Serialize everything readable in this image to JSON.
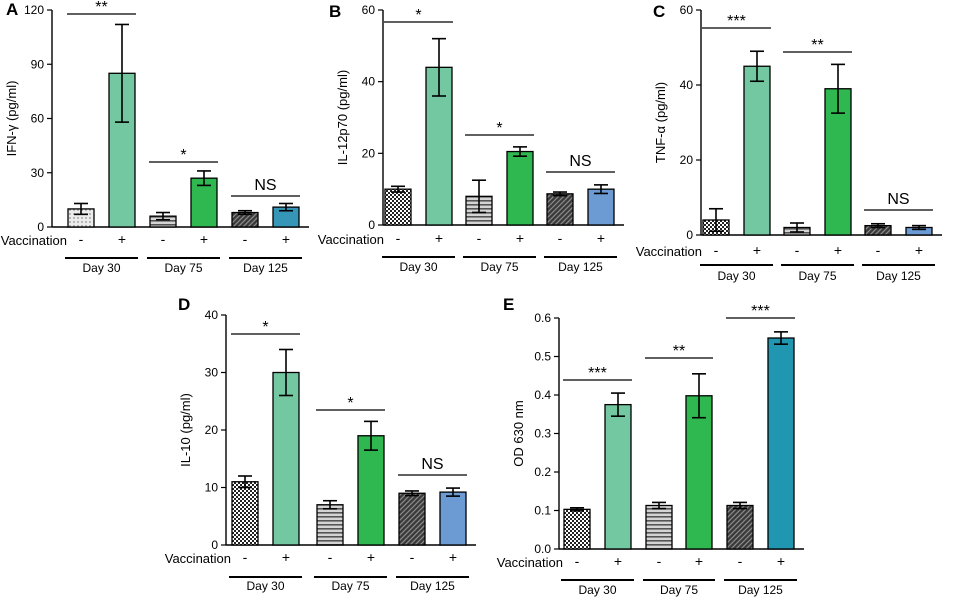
{
  "chart_data": [
    {
      "type": "bar",
      "panel": "A",
      "ylabel": "IFN-γ (pg/ml)",
      "ylim": [
        0,
        120
      ],
      "yticks": [
        "0",
        "30",
        "60",
        "90",
        "120"
      ],
      "treatment_label": "Vaccination",
      "signs": [
        "-",
        "+"
      ],
      "groups": [
        {
          "label": "Day 30",
          "sig": "**",
          "values": [
            10,
            85
          ],
          "errors": [
            3,
            27
          ]
        },
        {
          "label": "Day 75",
          "sig": "*",
          "values": [
            6,
            27
          ],
          "errors": [
            2,
            4
          ]
        },
        {
          "label": "Day 125",
          "sig": "NS",
          "values": [
            8,
            11
          ],
          "errors": [
            1,
            2
          ]
        }
      ]
    },
    {
      "type": "bar",
      "panel": "B",
      "ylabel": "IL-12p70 (pg/ml)",
      "ylim": [
        0,
        60
      ],
      "yticks": [
        "0",
        "20",
        "40",
        "60"
      ],
      "treatment_label": "Vaccination",
      "signs": [
        "-",
        "+"
      ],
      "groups": [
        {
          "label": "Day 30",
          "sig": "*",
          "values": [
            10,
            44
          ],
          "errors": [
            0.8,
            8
          ]
        },
        {
          "label": "Day 75",
          "sig": "*",
          "values": [
            8,
            20.5
          ],
          "errors": [
            4.5,
            1.3
          ]
        },
        {
          "label": "Day 125",
          "sig": "NS",
          "values": [
            8.7,
            10
          ],
          "errors": [
            0.5,
            1.2
          ]
        }
      ]
    },
    {
      "type": "bar",
      "panel": "C",
      "ylabel": "TNF-α (pg/ml)",
      "ylim": [
        0,
        60
      ],
      "yticks": [
        "0",
        "20",
        "40",
        "60"
      ],
      "treatment_label": "Vaccination",
      "signs": [
        "-",
        "+"
      ],
      "groups": [
        {
          "label": "Day 30",
          "sig": "***",
          "values": [
            4,
            45
          ],
          "errors": [
            3,
            4
          ]
        },
        {
          "label": "Day 75",
          "sig": "**",
          "values": [
            2,
            39
          ],
          "errors": [
            1.2,
            6.5
          ]
        },
        {
          "label": "Day 125",
          "sig": "NS",
          "values": [
            2.5,
            2
          ],
          "errors": [
            0.5,
            0.5
          ]
        }
      ]
    },
    {
      "type": "bar",
      "panel": "D",
      "ylabel": "IL-10 (pg/ml)",
      "ylim": [
        0,
        40
      ],
      "yticks": [
        "0",
        "10",
        "20",
        "30",
        "40"
      ],
      "treatment_label": "Vaccination",
      "signs": [
        "-",
        "+"
      ],
      "groups": [
        {
          "label": "Day 30",
          "sig": "*",
          "values": [
            11,
            30
          ],
          "errors": [
            1,
            4
          ]
        },
        {
          "label": "Day 75",
          "sig": "*",
          "values": [
            7,
            19
          ],
          "errors": [
            0.7,
            2.5
          ]
        },
        {
          "label": "Day 125",
          "sig": "NS",
          "values": [
            9,
            9.2
          ],
          "errors": [
            0.4,
            0.7
          ]
        }
      ]
    },
    {
      "type": "bar",
      "panel": "E",
      "ylabel": "OD 630 nm",
      "ylim": [
        0,
        0.6
      ],
      "yticks": [
        "0.0",
        "0.1",
        "0.2",
        "0.3",
        "0.4",
        "0.5",
        "0.6"
      ],
      "treatment_label": "Vaccination",
      "signs": [
        "-",
        "+"
      ],
      "groups": [
        {
          "label": "Day 30",
          "sig": "***",
          "values": [
            0.103,
            0.375
          ],
          "errors": [
            0.004,
            0.03
          ]
        },
        {
          "label": "Day 75",
          "sig": "**",
          "values": [
            0.113,
            0.398
          ],
          "errors": [
            0.008,
            0.057
          ]
        },
        {
          "label": "Day 125",
          "sig": "***",
          "values": [
            0.113,
            0.548
          ],
          "errors": [
            0.008,
            0.016
          ]
        }
      ]
    }
  ]
}
